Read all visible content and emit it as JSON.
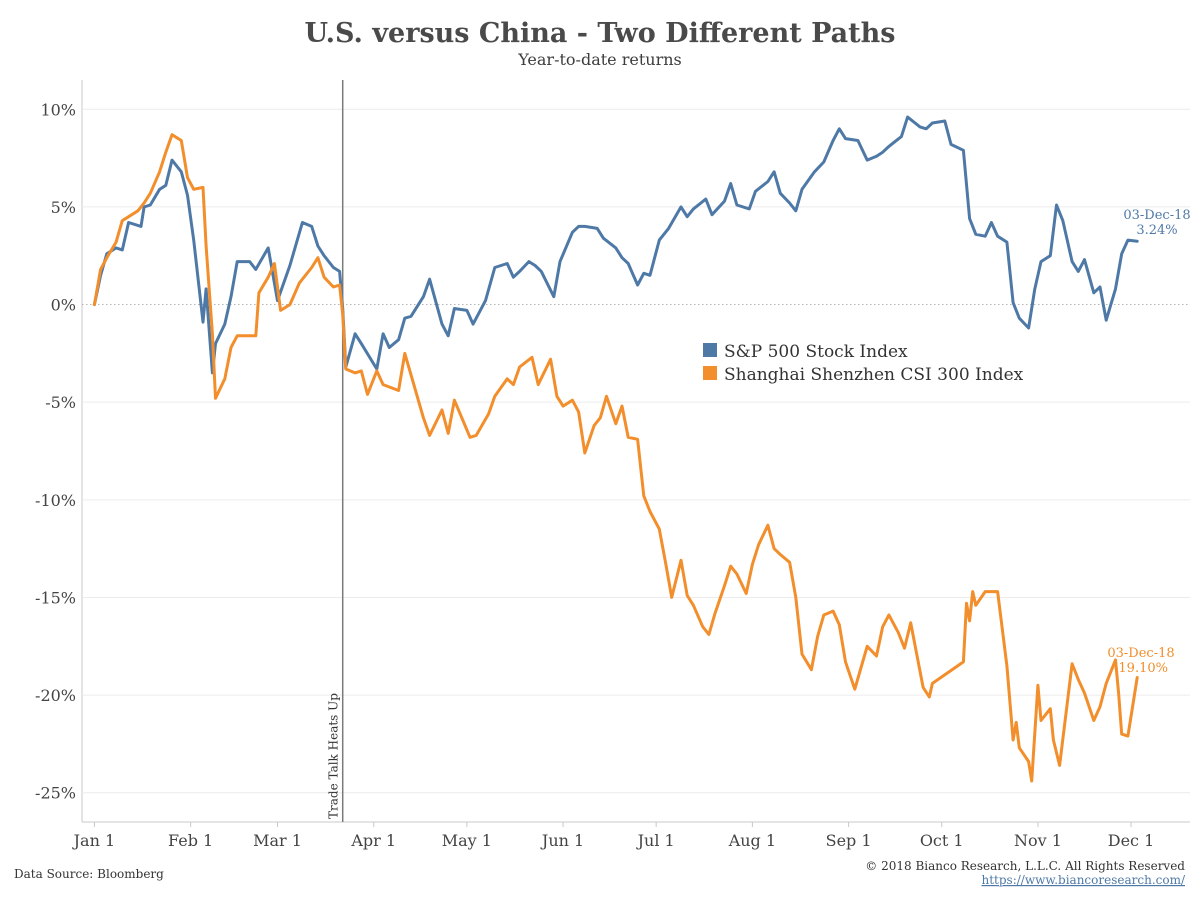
{
  "chart_data": {
    "type": "line",
    "title": "U.S. versus China - Two Different Paths",
    "subtitle": "Year-to-date returns",
    "x_ticks": [
      "Jan 1",
      "Feb 1",
      "Mar 1",
      "Apr 1",
      "May 1",
      "Jun 1",
      "Jul 1",
      "Aug 1",
      "Sep 1",
      "Oct 1",
      "Nov 1",
      "Dec 1"
    ],
    "y_ticks": [
      "10%",
      "5%",
      "0%",
      "-5%",
      "-10%",
      "-15%",
      "-20%",
      "-25%"
    ],
    "ylim": [
      -26.5,
      11.5
    ],
    "xlim": [
      "2017-12-28",
      "2018-12-20"
    ],
    "annotation": {
      "date": "2018-03-22",
      "label": "Trade Talk Heats Up"
    },
    "legend_position": "center-right",
    "series": [
      {
        "name": "S&P 500 Stock Index",
        "color": "#4e79a7",
        "end_label": {
          "date_text": "03-Dec-18",
          "value_text": "3.24%"
        },
        "points": [
          [
            "2018-01-01",
            0
          ],
          [
            "2018-01-03",
            1.5
          ],
          [
            "2018-01-05",
            2.6
          ],
          [
            "2018-01-08",
            2.9
          ],
          [
            "2018-01-10",
            2.8
          ],
          [
            "2018-01-12",
            4.2
          ],
          [
            "2018-01-16",
            4.0
          ],
          [
            "2018-01-17",
            5.0
          ],
          [
            "2018-01-19",
            5.1
          ],
          [
            "2018-01-22",
            5.9
          ],
          [
            "2018-01-24",
            6.1
          ],
          [
            "2018-01-26",
            7.4
          ],
          [
            "2018-01-29",
            6.8
          ],
          [
            "2018-01-31",
            5.6
          ],
          [
            "2018-02-02",
            3.3
          ],
          [
            "2018-02-05",
            -0.9
          ],
          [
            "2018-02-06",
            0.8
          ],
          [
            "2018-02-08",
            -3.5
          ],
          [
            "2018-02-09",
            -2.0
          ],
          [
            "2018-02-12",
            -1.0
          ],
          [
            "2018-02-14",
            0.4
          ],
          [
            "2018-02-16",
            2.2
          ],
          [
            "2018-02-20",
            2.2
          ],
          [
            "2018-02-22",
            1.8
          ],
          [
            "2018-02-26",
            2.9
          ],
          [
            "2018-02-28",
            1.1
          ],
          [
            "2018-03-01",
            0.2
          ],
          [
            "2018-03-05",
            2.0
          ],
          [
            "2018-03-09",
            4.2
          ],
          [
            "2018-03-12",
            4.0
          ],
          [
            "2018-03-14",
            3.0
          ],
          [
            "2018-03-16",
            2.5
          ],
          [
            "2018-03-19",
            1.9
          ],
          [
            "2018-03-21",
            1.7
          ],
          [
            "2018-03-22",
            -0.2
          ],
          [
            "2018-03-23",
            -3.2
          ],
          [
            "2018-03-26",
            -1.5
          ],
          [
            "2018-03-28",
            -2.0
          ],
          [
            "2018-04-02",
            -3.3
          ],
          [
            "2018-04-04",
            -1.5
          ],
          [
            "2018-04-06",
            -2.2
          ],
          [
            "2018-04-09",
            -1.8
          ],
          [
            "2018-04-11",
            -0.7
          ],
          [
            "2018-04-13",
            -0.6
          ],
          [
            "2018-04-17",
            0.4
          ],
          [
            "2018-04-19",
            1.3
          ],
          [
            "2018-04-23",
            -1.0
          ],
          [
            "2018-04-25",
            -1.6
          ],
          [
            "2018-04-27",
            -0.2
          ],
          [
            "2018-05-01",
            -0.3
          ],
          [
            "2018-05-03",
            -1.0
          ],
          [
            "2018-05-07",
            0.2
          ],
          [
            "2018-05-10",
            1.9
          ],
          [
            "2018-05-14",
            2.1
          ],
          [
            "2018-05-16",
            1.4
          ],
          [
            "2018-05-18",
            1.7
          ],
          [
            "2018-05-21",
            2.2
          ],
          [
            "2018-05-23",
            2.0
          ],
          [
            "2018-05-25",
            1.7
          ],
          [
            "2018-05-29",
            0.4
          ],
          [
            "2018-05-31",
            2.2
          ],
          [
            "2018-06-04",
            3.7
          ],
          [
            "2018-06-06",
            4.0
          ],
          [
            "2018-06-08",
            4.0
          ],
          [
            "2018-06-12",
            3.9
          ],
          [
            "2018-06-14",
            3.4
          ],
          [
            "2018-06-18",
            2.9
          ],
          [
            "2018-06-20",
            2.4
          ],
          [
            "2018-06-22",
            2.1
          ],
          [
            "2018-06-25",
            1.0
          ],
          [
            "2018-06-27",
            1.6
          ],
          [
            "2018-06-29",
            1.5
          ],
          [
            "2018-07-02",
            3.3
          ],
          [
            "2018-07-05",
            3.9
          ],
          [
            "2018-07-09",
            5.0
          ],
          [
            "2018-07-11",
            4.5
          ],
          [
            "2018-07-13",
            4.9
          ],
          [
            "2018-07-17",
            5.4
          ],
          [
            "2018-07-19",
            4.6
          ],
          [
            "2018-07-23",
            5.3
          ],
          [
            "2018-07-25",
            6.2
          ],
          [
            "2018-07-27",
            5.1
          ],
          [
            "2018-07-31",
            4.9
          ],
          [
            "2018-08-02",
            5.8
          ],
          [
            "2018-08-06",
            6.3
          ],
          [
            "2018-08-08",
            6.8
          ],
          [
            "2018-08-10",
            5.7
          ],
          [
            "2018-08-13",
            5.2
          ],
          [
            "2018-08-15",
            4.8
          ],
          [
            "2018-08-17",
            5.9
          ],
          [
            "2018-08-21",
            6.8
          ],
          [
            "2018-08-24",
            7.3
          ],
          [
            "2018-08-27",
            8.4
          ],
          [
            "2018-08-29",
            9.0
          ],
          [
            "2018-08-31",
            8.5
          ],
          [
            "2018-09-04",
            8.4
          ],
          [
            "2018-09-07",
            7.4
          ],
          [
            "2018-09-10",
            7.6
          ],
          [
            "2018-09-12",
            7.8
          ],
          [
            "2018-09-14",
            8.1
          ],
          [
            "2018-09-18",
            8.6
          ],
          [
            "2018-09-20",
            9.6
          ],
          [
            "2018-09-24",
            9.1
          ],
          [
            "2018-09-26",
            9.0
          ],
          [
            "2018-09-28",
            9.3
          ],
          [
            "2018-10-02",
            9.4
          ],
          [
            "2018-10-04",
            8.2
          ],
          [
            "2018-10-08",
            7.9
          ],
          [
            "2018-10-10",
            4.4
          ],
          [
            "2018-10-12",
            3.6
          ],
          [
            "2018-10-15",
            3.5
          ],
          [
            "2018-10-17",
            4.2
          ],
          [
            "2018-10-19",
            3.5
          ],
          [
            "2018-10-22",
            3.2
          ],
          [
            "2018-10-24",
            0.1
          ],
          [
            "2018-10-26",
            -0.7
          ],
          [
            "2018-10-29",
            -1.2
          ],
          [
            "2018-10-31",
            0.8
          ],
          [
            "2018-11-02",
            2.2
          ],
          [
            "2018-11-05",
            2.5
          ],
          [
            "2018-11-07",
            5.1
          ],
          [
            "2018-11-09",
            4.3
          ],
          [
            "2018-11-12",
            2.2
          ],
          [
            "2018-11-14",
            1.7
          ],
          [
            "2018-11-16",
            2.3
          ],
          [
            "2018-11-19",
            0.6
          ],
          [
            "2018-11-21",
            0.9
          ],
          [
            "2018-11-23",
            -0.8
          ],
          [
            "2018-11-26",
            0.8
          ],
          [
            "2018-11-28",
            2.6
          ],
          [
            "2018-11-30",
            3.3
          ],
          [
            "2018-12-03",
            3.24
          ]
        ]
      },
      {
        "name": "Shanghai Shenzhen CSI 300 Index",
        "color": "#f28e2b",
        "end_label": {
          "date_text": "03-Dec-18",
          "value_text": "-19.10%"
        },
        "points": [
          [
            "2018-01-01",
            0
          ],
          [
            "2018-01-03",
            1.8
          ],
          [
            "2018-01-05",
            2.4
          ],
          [
            "2018-01-08",
            3.2
          ],
          [
            "2018-01-10",
            4.3
          ],
          [
            "2018-01-12",
            4.5
          ],
          [
            "2018-01-15",
            4.8
          ],
          [
            "2018-01-17",
            5.2
          ],
          [
            "2018-01-19",
            5.7
          ],
          [
            "2018-01-22",
            6.8
          ],
          [
            "2018-01-24",
            7.8
          ],
          [
            "2018-01-26",
            8.7
          ],
          [
            "2018-01-29",
            8.4
          ],
          [
            "2018-01-31",
            6.5
          ],
          [
            "2018-02-02",
            5.9
          ],
          [
            "2018-02-05",
            6.0
          ],
          [
            "2018-02-06",
            3.0
          ],
          [
            "2018-02-08",
            -1.5
          ],
          [
            "2018-02-09",
            -4.8
          ],
          [
            "2018-02-12",
            -3.8
          ],
          [
            "2018-02-14",
            -2.2
          ],
          [
            "2018-02-16",
            -1.6
          ],
          [
            "2018-02-22",
            -1.6
          ],
          [
            "2018-02-23",
            0.6
          ],
          [
            "2018-02-26",
            1.4
          ],
          [
            "2018-02-28",
            2.1
          ],
          [
            "2018-03-02",
            -0.3
          ],
          [
            "2018-03-05",
            0.0
          ],
          [
            "2018-03-08",
            1.1
          ],
          [
            "2018-03-12",
            1.9
          ],
          [
            "2018-03-14",
            2.4
          ],
          [
            "2018-03-16",
            1.4
          ],
          [
            "2018-03-19",
            0.9
          ],
          [
            "2018-03-21",
            1.0
          ],
          [
            "2018-03-22",
            -0.5
          ],
          [
            "2018-03-23",
            -3.3
          ],
          [
            "2018-03-26",
            -3.5
          ],
          [
            "2018-03-28",
            -3.4
          ],
          [
            "2018-03-30",
            -4.6
          ],
          [
            "2018-04-02",
            -3.4
          ],
          [
            "2018-04-04",
            -4.1
          ],
          [
            "2018-04-09",
            -4.4
          ],
          [
            "2018-04-11",
            -2.5
          ],
          [
            "2018-04-13",
            -3.6
          ],
          [
            "2018-04-17",
            -5.8
          ],
          [
            "2018-04-19",
            -6.7
          ],
          [
            "2018-04-23",
            -5.4
          ],
          [
            "2018-04-25",
            -6.6
          ],
          [
            "2018-04-27",
            -4.9
          ],
          [
            "2018-05-02",
            -6.8
          ],
          [
            "2018-05-04",
            -6.7
          ],
          [
            "2018-05-08",
            -5.6
          ],
          [
            "2018-05-10",
            -4.7
          ],
          [
            "2018-05-14",
            -3.8
          ],
          [
            "2018-05-16",
            -4.1
          ],
          [
            "2018-05-18",
            -3.2
          ],
          [
            "2018-05-22",
            -2.7
          ],
          [
            "2018-05-24",
            -4.1
          ],
          [
            "2018-05-28",
            -2.8
          ],
          [
            "2018-05-30",
            -4.7
          ],
          [
            "2018-06-01",
            -5.2
          ],
          [
            "2018-06-04",
            -4.9
          ],
          [
            "2018-06-06",
            -5.5
          ],
          [
            "2018-06-08",
            -7.6
          ],
          [
            "2018-06-11",
            -6.2
          ],
          [
            "2018-06-13",
            -5.8
          ],
          [
            "2018-06-15",
            -4.7
          ],
          [
            "2018-06-18",
            -6.1
          ],
          [
            "2018-06-20",
            -5.2
          ],
          [
            "2018-06-22",
            -6.8
          ],
          [
            "2018-06-25",
            -6.9
          ],
          [
            "2018-06-27",
            -9.8
          ],
          [
            "2018-06-29",
            -10.6
          ],
          [
            "2018-07-02",
            -11.5
          ],
          [
            "2018-07-04",
            -13.2
          ],
          [
            "2018-07-06",
            -15.0
          ],
          [
            "2018-07-09",
            -13.1
          ],
          [
            "2018-07-11",
            -14.9
          ],
          [
            "2018-07-13",
            -15.4
          ],
          [
            "2018-07-16",
            -16.5
          ],
          [
            "2018-07-18",
            -16.9
          ],
          [
            "2018-07-20",
            -15.8
          ],
          [
            "2018-07-23",
            -14.4
          ],
          [
            "2018-07-25",
            -13.4
          ],
          [
            "2018-07-27",
            -13.8
          ],
          [
            "2018-07-30",
            -14.8
          ],
          [
            "2018-08-01",
            -13.3
          ],
          [
            "2018-08-03",
            -12.3
          ],
          [
            "2018-08-06",
            -11.3
          ],
          [
            "2018-08-08",
            -12.5
          ],
          [
            "2018-08-10",
            -12.8
          ],
          [
            "2018-08-13",
            -13.2
          ],
          [
            "2018-08-15",
            -15.0
          ],
          [
            "2018-08-17",
            -17.9
          ],
          [
            "2018-08-20",
            -18.7
          ],
          [
            "2018-08-22",
            -17.0
          ],
          [
            "2018-08-24",
            -15.9
          ],
          [
            "2018-08-27",
            -15.7
          ],
          [
            "2018-08-29",
            -16.4
          ],
          [
            "2018-08-31",
            -18.3
          ],
          [
            "2018-09-03",
            -19.7
          ],
          [
            "2018-09-05",
            -18.6
          ],
          [
            "2018-09-07",
            -17.5
          ],
          [
            "2018-09-10",
            -18.0
          ],
          [
            "2018-09-12",
            -16.5
          ],
          [
            "2018-09-14",
            -15.9
          ],
          [
            "2018-09-17",
            -16.8
          ],
          [
            "2018-09-19",
            -17.6
          ],
          [
            "2018-09-21",
            -16.3
          ],
          [
            "2018-09-25",
            -19.6
          ],
          [
            "2018-09-27",
            -20.1
          ],
          [
            "2018-09-28",
            -19.4
          ],
          [
            "2018-10-08",
            -18.3
          ],
          [
            "2018-10-09",
            -15.3
          ],
          [
            "2018-10-10",
            -16.2
          ],
          [
            "2018-10-11",
            -14.7
          ],
          [
            "2018-10-12",
            -15.4
          ],
          [
            "2018-10-15",
            -14.7
          ],
          [
            "2018-10-19",
            -14.7
          ],
          [
            "2018-10-22",
            -18.5
          ],
          [
            "2018-10-24",
            -22.3
          ],
          [
            "2018-10-25",
            -21.4
          ],
          [
            "2018-10-26",
            -22.7
          ],
          [
            "2018-10-29",
            -23.4
          ],
          [
            "2018-10-30",
            -24.4
          ],
          [
            "2018-11-01",
            -19.5
          ],
          [
            "2018-11-02",
            -21.3
          ],
          [
            "2018-11-05",
            -20.7
          ],
          [
            "2018-11-06",
            -22.3
          ],
          [
            "2018-11-08",
            -23.6
          ],
          [
            "2018-11-12",
            -18.4
          ],
          [
            "2018-11-14",
            -19.2
          ],
          [
            "2018-11-16",
            -19.9
          ],
          [
            "2018-11-19",
            -21.3
          ],
          [
            "2018-11-21",
            -20.6
          ],
          [
            "2018-11-23",
            -19.4
          ],
          [
            "2018-11-26",
            -18.2
          ],
          [
            "2018-11-27",
            -19.9
          ],
          [
            "2018-11-28",
            -22.0
          ],
          [
            "2018-11-30",
            -22.1
          ],
          [
            "2018-12-01",
            -21.1
          ],
          [
            "2018-12-03",
            -19.1
          ]
        ]
      }
    ]
  },
  "footer": {
    "source": "Data Source: Bloomberg",
    "copyright": "© 2018 Bianco Research, L.L.C. All Rights Reserved",
    "url": "https://www.biancoresearch.com/"
  }
}
